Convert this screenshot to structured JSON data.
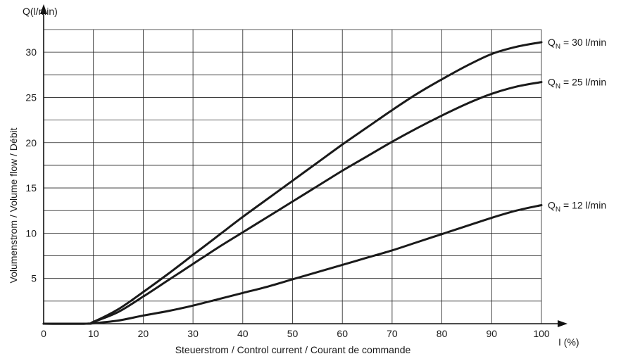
{
  "chart_data": {
    "type": "line",
    "xlabel": "Steuerstrom / Control current / Courant de commande",
    "x_unit_label": "I (%)",
    "ylabel": "Volumenstrom / Volume flow / Débit",
    "y_unit_label": "Q(l/min)",
    "xlim": [
      0,
      100
    ],
    "ylim": [
      0,
      32.5
    ],
    "x_ticks": [
      "0",
      "10",
      "20",
      "30",
      "40",
      "50",
      "60",
      "70",
      "80",
      "90",
      "100"
    ],
    "y_ticks": [
      "5",
      "10",
      "15",
      "20",
      "25",
      "30"
    ],
    "grid": true,
    "x_grid_step": 10,
    "y_grid_step": 2.5,
    "legend": "curve labels at right end of each line",
    "series": [
      {
        "name": "Q_N = 30 l/min",
        "label_main": "Q",
        "label_sub": "N",
        "label_rest": " = 30 l/min",
        "x": [
          0,
          8.5,
          10,
          15,
          20,
          25,
          30,
          35,
          40,
          45,
          50,
          55,
          60,
          65,
          70,
          75,
          80,
          85,
          90,
          95,
          100
        ],
        "y": [
          0,
          0,
          0.2,
          1.6,
          3.5,
          5.5,
          7.6,
          9.7,
          11.8,
          13.8,
          15.8,
          17.8,
          19.8,
          21.7,
          23.6,
          25.4,
          27.0,
          28.5,
          29.8,
          30.6,
          31.1
        ]
      },
      {
        "name": "Q_N = 25 l/min",
        "label_main": "Q",
        "label_sub": "N",
        "label_rest": " = 25 l/min",
        "x": [
          0,
          8.5,
          10,
          15,
          20,
          25,
          30,
          35,
          40,
          45,
          50,
          55,
          60,
          65,
          70,
          75,
          80,
          85,
          90,
          95,
          100
        ],
        "y": [
          0,
          0,
          0.2,
          1.3,
          3.0,
          4.8,
          6.6,
          8.4,
          10.1,
          11.8,
          13.5,
          15.2,
          16.9,
          18.5,
          20.1,
          21.6,
          23.0,
          24.3,
          25.4,
          26.2,
          26.7
        ]
      },
      {
        "name": "Q_N = 12 l/min",
        "label_main": "Q",
        "label_sub": "N",
        "label_rest": " = 12 l/min",
        "x": [
          0,
          8.5,
          10,
          15,
          20,
          25,
          30,
          35,
          40,
          45,
          50,
          55,
          60,
          65,
          70,
          75,
          80,
          85,
          90,
          95,
          100
        ],
        "y": [
          0,
          0,
          0.05,
          0.35,
          0.9,
          1.4,
          2.0,
          2.7,
          3.4,
          4.1,
          4.9,
          5.7,
          6.5,
          7.3,
          8.1,
          9.0,
          9.9,
          10.8,
          11.7,
          12.5,
          13.1
        ]
      }
    ]
  }
}
